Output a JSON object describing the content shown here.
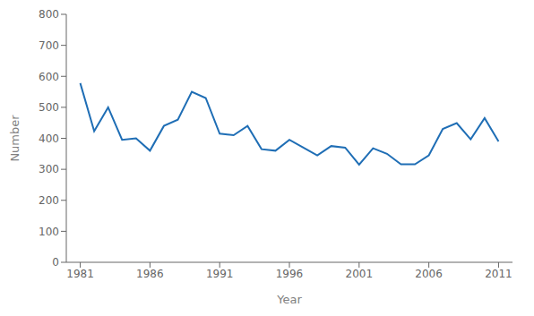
{
  "chart_data": {
    "type": "line",
    "x": [
      1981,
      1982,
      1983,
      1984,
      1985,
      1986,
      1987,
      1988,
      1989,
      1990,
      1991,
      1992,
      1993,
      1994,
      1995,
      1996,
      1997,
      1998,
      1999,
      2000,
      2001,
      2002,
      2003,
      2004,
      2005,
      2006,
      2007,
      2008,
      2009,
      2010,
      2011
    ],
    "values": [
      578,
      423,
      500,
      395,
      400,
      360,
      440,
      460,
      550,
      530,
      415,
      410,
      440,
      365,
      360,
      395,
      370,
      345,
      375,
      370,
      315,
      368,
      350,
      316,
      316,
      345,
      430,
      449,
      397,
      465,
      390
    ],
    "color": "#1F6EB5",
    "xlabel": "Year",
    "ylabel": "Number",
    "xlim": [
      1980,
      2012
    ],
    "ylim": [
      0,
      800
    ],
    "xticks": [
      1981,
      1986,
      1991,
      1996,
      2001,
      2006,
      2011
    ],
    "yticks": [
      0,
      100,
      200,
      300,
      400,
      500,
      600,
      700,
      800
    ],
    "grid": false
  }
}
